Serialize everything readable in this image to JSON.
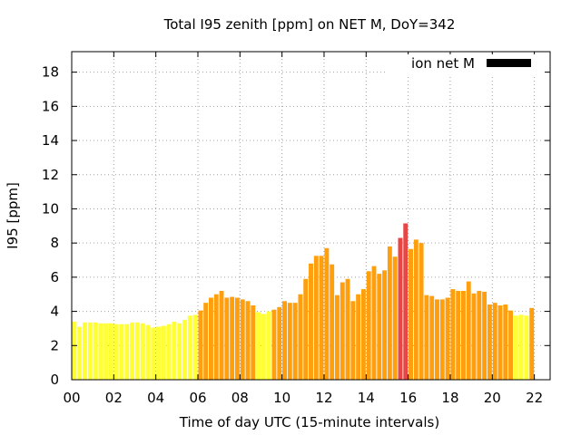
{
  "chart_data": {
    "type": "bar",
    "title": "Total I95 zenith [ppm] on NET M, DoY=342",
    "xlabel": "Time of day UTC (15-minute intervals)",
    "ylabel": "I95 [ppm]",
    "ylim": [
      0,
      19.2
    ],
    "xlim": [
      0,
      22.75
    ],
    "yticks": [
      0,
      2,
      4,
      6,
      8,
      10,
      12,
      14,
      16,
      18
    ],
    "xticks": [
      "00",
      "02",
      "04",
      "06",
      "08",
      "10",
      "12",
      "14",
      "16",
      "18",
      "20",
      "22"
    ],
    "grid": true,
    "legend": {
      "label": "ion net M",
      "color": "#000000",
      "position": "top-right"
    },
    "colors": {
      "low": "#ffff33",
      "mid": "#ff9f0e",
      "high": "#e84545"
    },
    "interval_hours": 0.25,
    "values": [
      3.4,
      3.1,
      3.35,
      3.35,
      3.35,
      3.3,
      3.3,
      3.3,
      3.25,
      3.25,
      3.25,
      3.35,
      3.35,
      3.3,
      3.2,
      3.05,
      3.1,
      3.15,
      3.25,
      3.4,
      3.3,
      3.5,
      3.75,
      3.8,
      4.05,
      4.5,
      4.8,
      5.0,
      5.2,
      4.8,
      4.85,
      4.8,
      4.7,
      4.6,
      4.35,
      3.95,
      3.85,
      4.0,
      4.1,
      4.25,
      4.6,
      4.5,
      4.5,
      5.0,
      5.9,
      6.8,
      7.25,
      7.25,
      7.7,
      6.75,
      4.95,
      5.7,
      5.9,
      4.6,
      5.0,
      5.3,
      6.35,
      6.65,
      6.2,
      6.4,
      7.8,
      7.2,
      8.3,
      9.15,
      7.65,
      8.2,
      8.0,
      4.95,
      4.9,
      4.7,
      4.7,
      4.8,
      5.3,
      5.2,
      5.2,
      5.75,
      5.05,
      5.2,
      5.15,
      4.4,
      4.5,
      4.35,
      4.4,
      4.05,
      3.75,
      3.8,
      3.75,
      4.2
    ],
    "levels": [
      "low",
      "low",
      "low",
      "low",
      "low",
      "low",
      "low",
      "low",
      "low",
      "low",
      "low",
      "low",
      "low",
      "low",
      "low",
      "low",
      "low",
      "low",
      "low",
      "low",
      "low",
      "low",
      "low",
      "low",
      "mid",
      "mid",
      "mid",
      "mid",
      "mid",
      "mid",
      "mid",
      "mid",
      "mid",
      "mid",
      "mid",
      "low",
      "low",
      "low",
      "mid",
      "mid",
      "mid",
      "mid",
      "mid",
      "mid",
      "mid",
      "mid",
      "mid",
      "mid",
      "mid",
      "mid",
      "mid",
      "mid",
      "mid",
      "mid",
      "mid",
      "mid",
      "mid",
      "mid",
      "mid",
      "mid",
      "mid",
      "mid",
      "high",
      "high",
      "mid",
      "mid",
      "mid",
      "mid",
      "mid",
      "mid",
      "mid",
      "mid",
      "mid",
      "mid",
      "mid",
      "mid",
      "mid",
      "mid",
      "mid",
      "mid",
      "mid",
      "mid",
      "mid",
      "mid",
      "low",
      "low",
      "low",
      "mid"
    ]
  }
}
